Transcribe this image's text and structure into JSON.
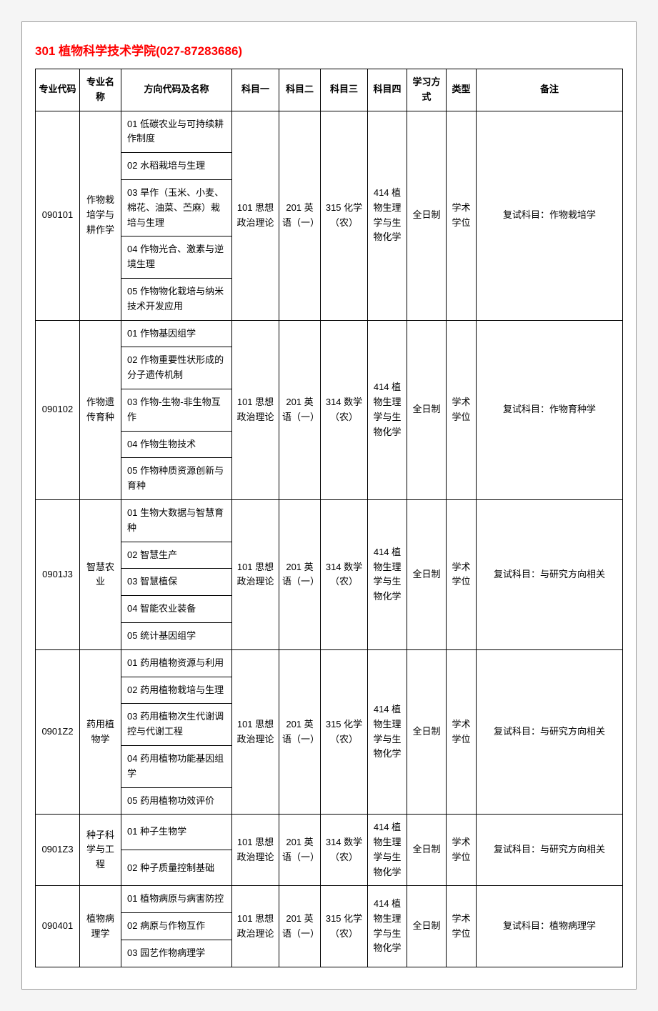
{
  "title": "301 植物科学技术学院(027-87283686)",
  "headers": [
    "专业代码",
    "专业名称",
    "方向代码及名称",
    "科目一",
    "科目二",
    "科目三",
    "科目四",
    "学习方式",
    "类型",
    "备注"
  ],
  "columns_class": [
    "col-code",
    "col-name",
    "col-dir",
    "col-s1",
    "col-s2",
    "col-s3",
    "col-s4",
    "col-mode",
    "col-type",
    "col-note"
  ],
  "majors": [
    {
      "code": "090101",
      "name": "作物栽培学与耕作学",
      "directions": [
        "01 低碳农业与可持续耕作制度",
        "02 水稻栽培与生理",
        "03 旱作（玉米、小麦、棉花、油菜、苎麻）栽培与生理",
        "04 作物光合、激素与逆境生理",
        "05 作物物化栽培与纳米技术开发应用"
      ],
      "s1": "101 思想政治理论",
      "s2": "201 英语（一）",
      "s3": "315 化学（农）",
      "s4": "414 植物生理学与生物化学",
      "mode": "全日制",
      "type": "学术学位",
      "note": "复试科目：作物栽培学"
    },
    {
      "code": "090102",
      "name": "作物遗传育种",
      "directions": [
        "01 作物基因组学",
        "02 作物重要性状形成的分子遗传机制",
        "03 作物-生物-非生物互作",
        "04 作物生物技术",
        "05 作物种质资源创新与育种"
      ],
      "s1": "101 思想政治理论",
      "s2": "201 英语（一）",
      "s3": "314 数学（农）",
      "s4": "414 植物生理学与生物化学",
      "mode": "全日制",
      "type": "学术学位",
      "note": "复试科目：作物育种学"
    },
    {
      "code": "0901J3",
      "name": "智慧农业",
      "directions": [
        "01 生物大数据与智慧育种",
        "02 智慧生产",
        "03 智慧植保",
        "04 智能农业装备",
        "05 统计基因组学"
      ],
      "s1": "101 思想政治理论",
      "s2": "201 英语（一）",
      "s3": "314 数学（农）",
      "s4": "414 植物生理学与生物化学",
      "mode": "全日制",
      "type": "学术学位",
      "note": "复试科目：与研究方向相关"
    },
    {
      "code": "0901Z2",
      "name": "药用植物学",
      "directions": [
        "01 药用植物资源与利用",
        "02 药用植物栽培与生理",
        "03 药用植物次生代谢调控与代谢工程",
        "04 药用植物功能基因组学",
        "05 药用植物功效评价"
      ],
      "s1": "101 思想政治理论",
      "s2": "201 英语（一）",
      "s3": "315 化学（农）",
      "s4": "414 植物生理学与生物化学",
      "mode": "全日制",
      "type": "学术学位",
      "note": "复试科目：与研究方向相关"
    },
    {
      "code": "0901Z3",
      "name": "种子科学与工程",
      "directions": [
        "01 种子生物学",
        "02 种子质量控制基础"
      ],
      "s1": "101 思想政治理论",
      "s2": "201 英语（一）",
      "s3": "314 数学（农）",
      "s4": "414 植物生理学与生物化学",
      "mode": "全日制",
      "type": "学术学位",
      "note": "复试科目：与研究方向相关"
    },
    {
      "code": "090401",
      "name": "植物病理学",
      "directions": [
        "01 植物病原与病害防控",
        "02 病原与作物互作",
        "03 园艺作物病理学"
      ],
      "s1": "101 思想政治理论",
      "s2": "201 英语（一）",
      "s3": "315 化学（农）",
      "s4": "414 植物生理学与生物化学",
      "mode": "全日制",
      "type": "学术学位",
      "note": "复试科目：植物病理学"
    }
  ]
}
